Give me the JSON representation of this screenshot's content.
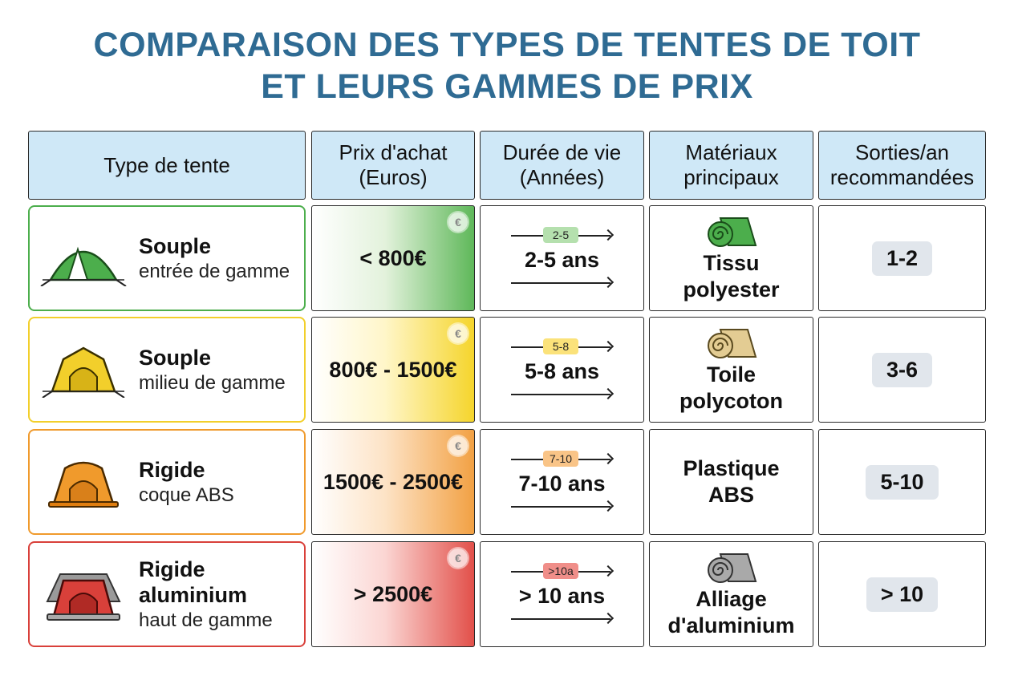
{
  "title_line1": "COMPARAISON DES TYPES DE TENTES DE TOIT",
  "title_line2": "ET LEURS GAMMES DE PRIX",
  "headers": {
    "type": "Type de tente",
    "price_l1": "Prix d'achat",
    "price_l2": "(Euros)",
    "life_l1": "Durée de vie",
    "life_l2": "(Années)",
    "mat_l1": "Matériaux",
    "mat_l2": "principaux",
    "trips_l1": "Sorties/an",
    "trips_l2": "recommandées"
  },
  "euro_symbol": "€",
  "rows": [
    {
      "type_main": "Souple",
      "type_main2": "",
      "type_sub": "entrée de gamme",
      "price": "< 800€",
      "life_badge": "2-5",
      "life": "2-5 ans",
      "mat_l1": "Tissu",
      "mat_l2": "polyester",
      "trips": "1-2",
      "color": "#4cae4c",
      "icon": "dome-tent-icon"
    },
    {
      "type_main": "Souple",
      "type_main2": "",
      "type_sub": "milieu de gamme",
      "price": "800€ - 1500€",
      "life_badge": "5-8",
      "life": "5-8 ans",
      "mat_l1": "Toile",
      "mat_l2": "polycoton",
      "trips": "3-6",
      "color": "#f2cf2b",
      "icon": "canvas-tent-icon"
    },
    {
      "type_main": "Rigide",
      "type_main2": "",
      "type_sub": "coque ABS",
      "price": "1500€ - 2500€",
      "life_badge": "7-10",
      "life": "7-10 ans",
      "mat_l1": "Plastique",
      "mat_l2": "ABS",
      "trips": "5-10",
      "color": "#f09a2c",
      "icon": "hardshell-tent-icon"
    },
    {
      "type_main": "Rigide",
      "type_main2": "aluminium",
      "type_sub": "haut de gamme",
      "price": "> 2500€",
      "life_badge": ">10a",
      "life": "> 10 ans",
      "mat_l1": "Alliage",
      "mat_l2": "d'aluminium",
      "trips": "> 10",
      "color": "#d9403a",
      "icon": "aluminium-tent-icon"
    }
  ]
}
